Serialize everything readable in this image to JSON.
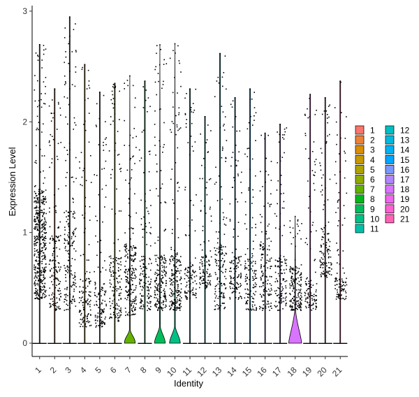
{
  "chart_data": {
    "type": "violin",
    "xlabel": "Identity",
    "ylabel": "Expression Level",
    "ylim": [
      -0.12,
      3.05
    ],
    "yticks": [
      0,
      1,
      2,
      3
    ],
    "categories": [
      "1",
      "2",
      "3",
      "4",
      "5",
      "6",
      "7",
      "8",
      "9",
      "10",
      "11",
      "12",
      "13",
      "14",
      "15",
      "16",
      "17",
      "18",
      "19",
      "20",
      "21"
    ],
    "colors": [
      "#F8766D",
      "#EC8239",
      "#DB8E00",
      "#C79800",
      "#AEA200",
      "#8FAA00",
      "#64B200",
      "#00B81B",
      "#00BD5C",
      "#00C085",
      "#00C1A7",
      "#00BFC4",
      "#00BADE",
      "#00B2F3",
      "#00A6FF",
      "#7C96FF",
      "#B385FF",
      "#D874FD",
      "#EF67EB",
      "#FD61D3",
      "#FF63B6"
    ],
    "series": [
      {
        "max": 2.7,
        "dense": [
          0.4,
          1.4
        ]
      },
      {
        "max": 2.3,
        "dense": [
          0.3,
          1.0
        ]
      },
      {
        "max": 2.95,
        "dense": [
          0.3,
          1.2
        ]
      },
      {
        "max": 2.52,
        "dense": [
          0.15,
          0.6
        ]
      },
      {
        "max": 2.27,
        "dense": [
          0.15,
          0.55
        ]
      },
      {
        "max": 2.35,
        "dense": [
          0.2,
          0.8
        ]
      },
      {
        "max": 2.42,
        "dense": [
          0.25,
          0.9
        ],
        "bulge": 0.12
      },
      {
        "max": 2.37,
        "dense": [
          0.3,
          0.8
        ]
      },
      {
        "max": 2.7,
        "dense": [
          0.3,
          0.8
        ],
        "bulge": 0.15
      },
      {
        "max": 2.71,
        "dense": [
          0.3,
          0.8
        ],
        "bulge": 0.15
      },
      {
        "max": 2.3,
        "dense": [
          0.4,
          0.7
        ]
      },
      {
        "max": 2.05,
        "dense": [
          0.5,
          0.8
        ]
      },
      {
        "max": 2.62,
        "dense": [
          0.3,
          0.9
        ]
      },
      {
        "max": 2.22,
        "dense": [
          0.4,
          0.8
        ]
      },
      {
        "max": 2.3,
        "dense": [
          0.3,
          0.8
        ]
      },
      {
        "max": 1.9,
        "dense": [
          0.3,
          0.9
        ]
      },
      {
        "max": 1.98,
        "dense": [
          0.3,
          0.8
        ]
      },
      {
        "max": 1.15,
        "dense": [
          0.3,
          0.7
        ],
        "bulge": 0.3
      },
      {
        "max": 2.25,
        "dense": [
          0.3,
          0.6
        ]
      },
      {
        "max": 2.22,
        "dense": [
          0.6,
          1.0
        ]
      },
      {
        "max": 2.37,
        "dense": [
          0.4,
          0.6
        ]
      }
    ],
    "legend_position": "right",
    "grid": false
  }
}
